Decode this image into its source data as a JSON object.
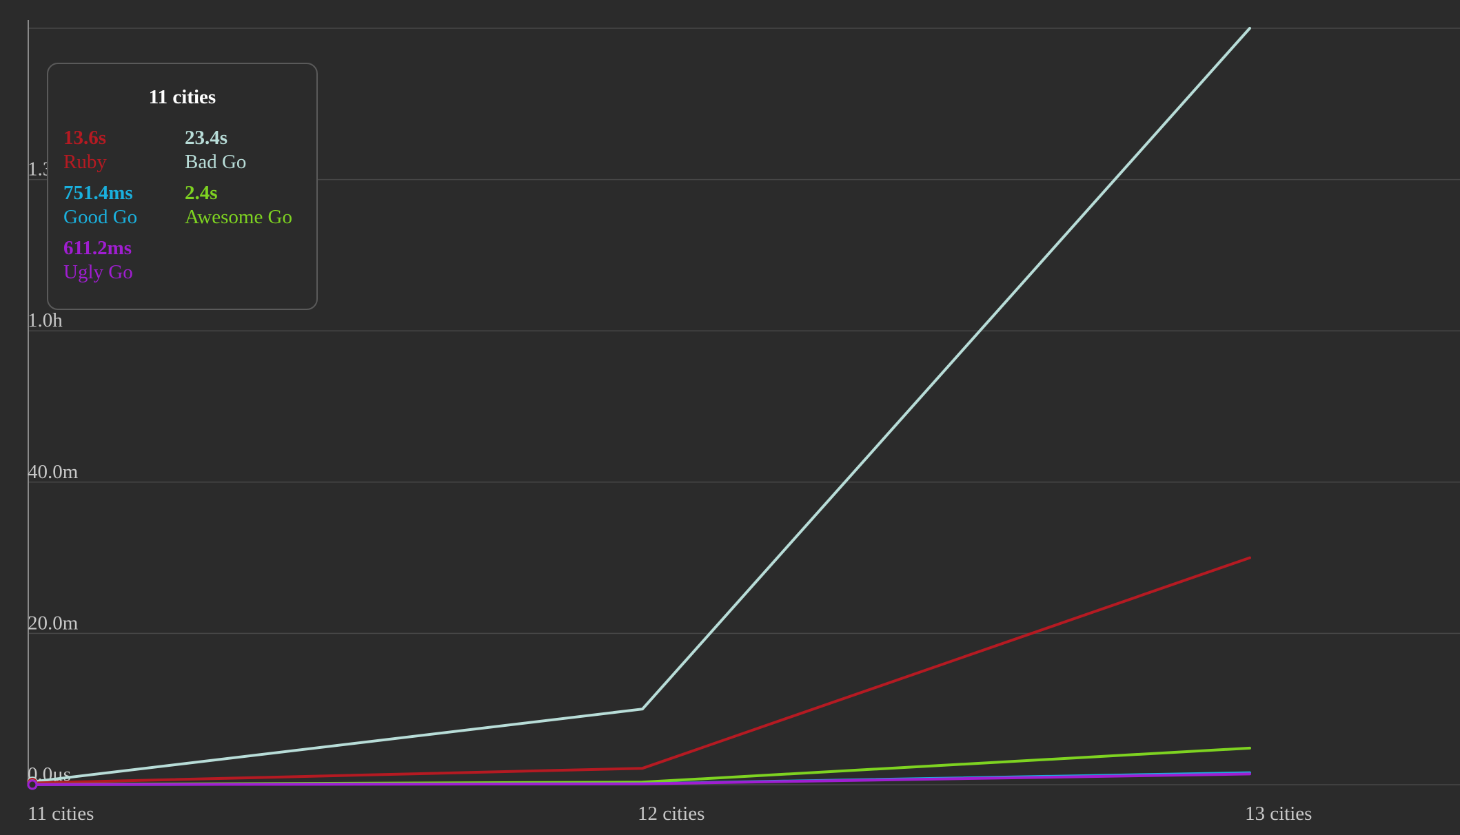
{
  "chart_data": {
    "type": "line",
    "categories": [
      "11 cities",
      "12 cities",
      "13 cities"
    ],
    "y_ticks": [
      {
        "label": "0.0μs",
        "value_ms": 0
      },
      {
        "label": "20.0m",
        "value_ms": 1200000
      },
      {
        "label": "40.0m",
        "value_ms": 2400000
      },
      {
        "label": "1.0h",
        "value_ms": 3600000
      },
      {
        "label": "1.3h",
        "value_ms": 4800000
      }
    ],
    "ylim_ms": [
      0,
      6000000
    ],
    "grid": true,
    "series": [
      {
        "name": "Bad Go",
        "color": "#b8ddd8",
        "values_ms": [
          23400,
          600000,
          6000000
        ]
      },
      {
        "name": "Ruby",
        "color": "#b51a22",
        "values_ms": [
          13600,
          130000,
          1800000
        ]
      },
      {
        "name": "Awesome Go",
        "color": "#7ed321",
        "values_ms": [
          2400,
          20000,
          290000
        ]
      },
      {
        "name": "Good Go",
        "color": "#1ab0dd",
        "values_ms": [
          751.4,
          8000,
          95000
        ]
      },
      {
        "name": "Ugly Go",
        "color": "#a01ed1",
        "values_ms": [
          611.2,
          7000,
          85000
        ]
      }
    ]
  },
  "tooltip": {
    "title": "11 cities",
    "items": [
      {
        "value": "13.6s",
        "label": "Ruby",
        "color": "#b51a22"
      },
      {
        "value": "23.4s",
        "label": "Bad Go",
        "color": "#b8ddd8"
      },
      {
        "value": "751.4ms",
        "label": "Good Go",
        "color": "#1ab0dd"
      },
      {
        "value": "2.4s",
        "label": "Awesome Go",
        "color": "#7ed321"
      },
      {
        "value": "611.2ms",
        "label": "Ugly Go",
        "color": "#a01ed1"
      }
    ]
  }
}
